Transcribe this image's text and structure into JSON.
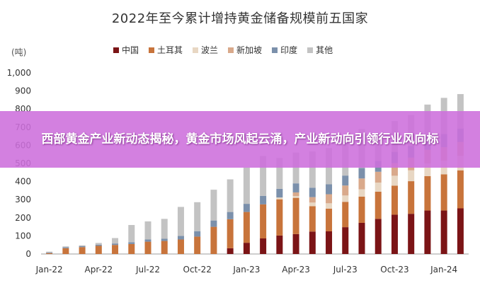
{
  "chart_data": {
    "type": "bar",
    "stacked": true,
    "title": "2022年至今累计增持黄金储备规模前五国家",
    "unit_label": "(吨)",
    "ylim": [
      0,
      1000
    ],
    "y_ticks": [
      "0",
      "100",
      "200",
      "300",
      "400",
      "500",
      "600",
      "700",
      "800",
      "900",
      "1,000"
    ],
    "x_tick_labels": [
      "Jan-22",
      "Apr-22",
      "Jul-22",
      "Oct-22",
      "Jan-23",
      "Apr-23",
      "Jul-23",
      "Oct-23",
      "Jan-24"
    ],
    "categories": [
      "Jan-22",
      "Feb-22",
      "Mar-22",
      "Apr-22",
      "May-22",
      "Jun-22",
      "Jul-22",
      "Aug-22",
      "Sep-22",
      "Oct-22",
      "Nov-22",
      "Dec-22",
      "Jan-23",
      "Feb-23",
      "Mar-23",
      "Apr-23",
      "May-23",
      "Jun-23",
      "Jul-23",
      "Aug-23",
      "Sep-23",
      "Oct-23",
      "Nov-23",
      "Dec-23",
      "Jan-24",
      "Feb-24"
    ],
    "legend_position": "top",
    "series": [
      {
        "name": "中国",
        "color": "#7b1416",
        "values": [
          0,
          0,
          0,
          0,
          0,
          0,
          0,
          0,
          0,
          0,
          0,
          32,
          62,
          86,
          102,
          110,
          124,
          125,
          148,
          172,
          194,
          217,
          222,
          240,
          240,
          252
        ]
      },
      {
        "name": "土耳其",
        "color": "#c8743b",
        "values": [
          5,
          32,
          38,
          45,
          50,
          55,
          68,
          72,
          80,
          96,
          150,
          160,
          170,
          188,
          200,
          200,
          140,
          125,
          140,
          145,
          150,
          160,
          180,
          190,
          200,
          210
        ]
      },
      {
        "name": "波兰",
        "color": "#e8d7c3",
        "values": [
          0,
          0,
          0,
          0,
          0,
          0,
          0,
          0,
          0,
          0,
          0,
          0,
          0,
          0,
          10,
          10,
          20,
          30,
          35,
          40,
          50,
          55,
          60,
          70,
          75,
          80
        ]
      },
      {
        "name": "新加坡",
        "color": "#d9a98b",
        "values": [
          0,
          0,
          0,
          0,
          0,
          0,
          0,
          0,
          0,
          0,
          0,
          0,
          0,
          0,
          0,
          20,
          30,
          50,
          55,
          60,
          60,
          70,
          70,
          75,
          75,
          77
        ]
      },
      {
        "name": "印度",
        "color": "#7b90ab",
        "values": [
          3,
          5,
          5,
          6,
          8,
          10,
          12,
          12,
          20,
          30,
          35,
          40,
          45,
          47,
          48,
          50,
          52,
          55,
          55,
          58,
          60,
          62,
          65,
          70,
          72,
          74
        ]
      },
      {
        "name": "其他",
        "color": "#c3c3c3",
        "values": [
          5,
          5,
          5,
          10,
          30,
          95,
          100,
          110,
          160,
          160,
          170,
          180,
          200,
          220,
          170,
          170,
          200,
          200,
          210,
          215,
          150,
          170,
          170,
          180,
          200,
          190
        ]
      }
    ]
  },
  "overlay": {
    "headline": "西部黄金产业新动态揭秘，黄金市场风起云涌，产业新动向引领行业风向标"
  }
}
